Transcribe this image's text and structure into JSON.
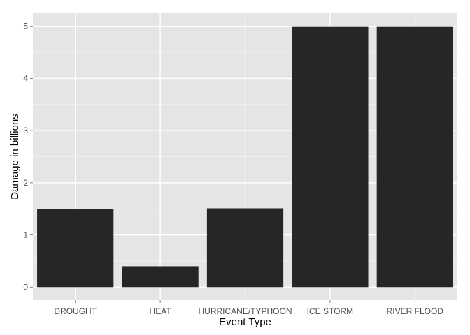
{
  "chart_data": {
    "type": "bar",
    "categories": [
      "DROUGHT",
      "HEAT",
      "HURRICANE/TYPHOON",
      "ICE STORM",
      "RIVER FLOOD"
    ],
    "values": [
      1.5,
      0.4,
      1.51,
      5.0,
      5.0
    ],
    "xlabel": "Event Type",
    "ylabel": "Damage in billions",
    "ylim": [
      -0.25,
      5.25
    ],
    "yticks": [
      0,
      1,
      2,
      3,
      4,
      5
    ],
    "grid": true,
    "colors": {
      "panel": "#e5e5e5",
      "grid_major": "#ffffff",
      "grid_minor": "#f2f2f2",
      "bar": "#262626",
      "tick": "#7f7f7f"
    }
  }
}
